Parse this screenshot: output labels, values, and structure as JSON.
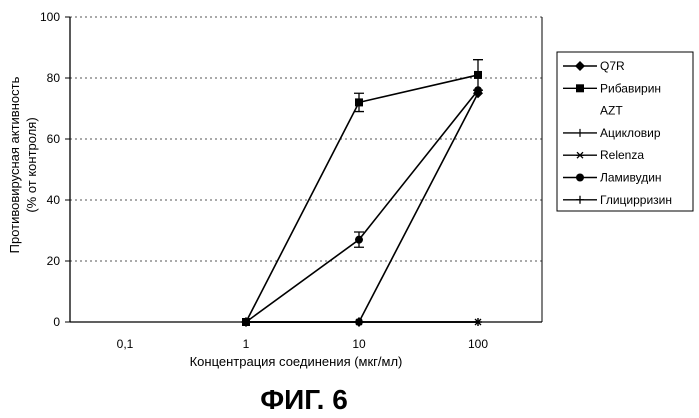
{
  "chart_data": {
    "type": "line",
    "xscale": "log",
    "x": [
      0.1,
      1,
      10,
      100
    ],
    "xticklabels": [
      "0,1",
      "1",
      "10",
      "100"
    ],
    "xlabel": "Концентрация соединения (мкг/мл)",
    "ylabel_line1": "Противовирусная активность",
    "ylabel_line2": "(% от контроля)",
    "ylim": [
      0,
      100
    ],
    "yticks": [
      0,
      20,
      40,
      60,
      80,
      100
    ],
    "grid": "horizontal-dotted",
    "legend_position": "right",
    "series": [
      {
        "name": "Q7R",
        "marker": "diamond",
        "values": [
          null,
          0,
          0,
          75
        ]
      },
      {
        "name": "Рибавирин",
        "marker": "square",
        "values": [
          null,
          0,
          72,
          81
        ],
        "errors": [
          null,
          null,
          3,
          5
        ]
      },
      {
        "name": "AZT",
        "marker": "none",
        "values": [
          null,
          null,
          null,
          null
        ]
      },
      {
        "name": "Ацикловир",
        "marker": "tick",
        "values": [
          null,
          0,
          0,
          0
        ]
      },
      {
        "name": "Relenza",
        "marker": "star",
        "values": [
          null,
          0,
          0,
          0
        ]
      },
      {
        "name": "Ламивудин",
        "marker": "circle",
        "values": [
          null,
          0,
          27,
          76
        ],
        "errors": [
          null,
          null,
          2.5,
          null
        ]
      },
      {
        "name": "Глицирризин",
        "marker": "plus",
        "values": [
          null,
          0,
          0,
          0
        ]
      }
    ]
  },
  "caption": "ФИГ. 6"
}
